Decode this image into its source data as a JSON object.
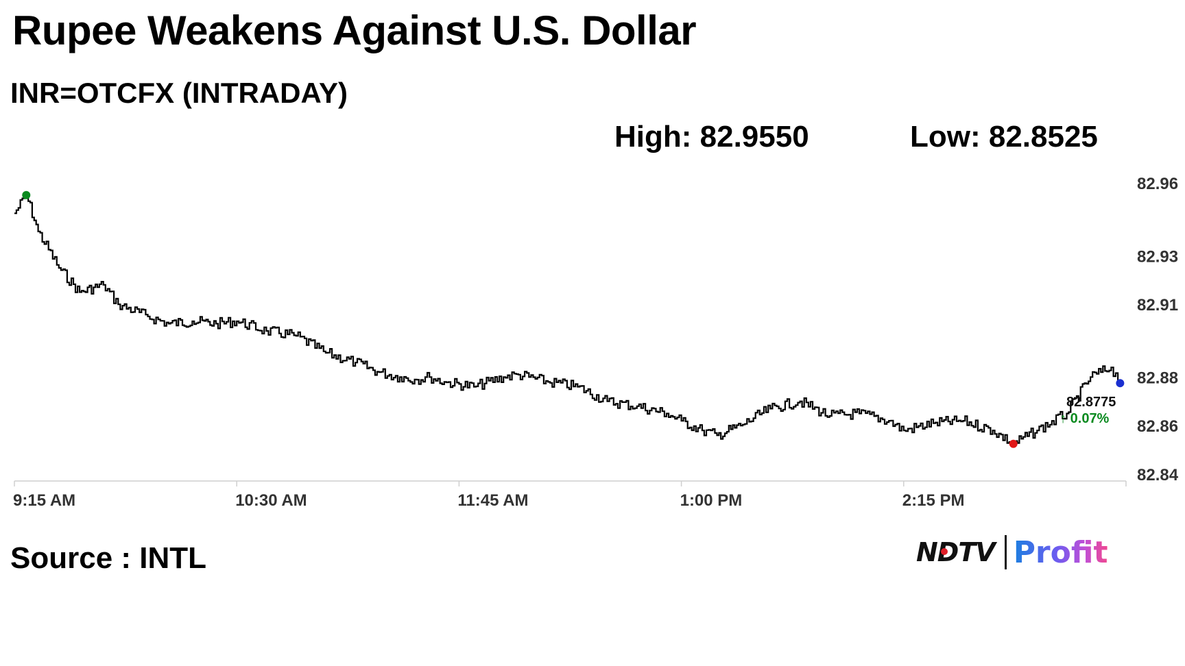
{
  "header": {
    "title": "Rupee Weakens Against U.S. Dollar",
    "subtitle": "INR=OTCFX (INTRADAY)",
    "high_text": "High: 82.9550",
    "low_text": "Low: 82.8525"
  },
  "footer": {
    "source_text": "Source : INTL",
    "logo_left": "NDTV",
    "logo_right": "Profit"
  },
  "chart_data": {
    "type": "line",
    "title": "",
    "xlabel": "",
    "ylabel": "",
    "x_ticks": [
      "9:15 AM",
      "10:30 AM",
      "11:45 AM",
      "1:00 PM",
      "2:15 PM"
    ],
    "y_ticks": [
      "82.96",
      "82.93",
      "82.91",
      "82.88",
      "82.86",
      "82.84"
    ],
    "y_tick_values": [
      82.96,
      82.93,
      82.91,
      82.88,
      82.86,
      82.84
    ],
    "ylim": [
      82.84,
      82.96
    ],
    "xlim": [
      "9:15 AM",
      "3:30 PM"
    ],
    "grid": false,
    "legend": "none",
    "series": [
      {
        "color": "#000000",
        "x": [
          "9:15 AM",
          "9:19 AM",
          "9:23 AM",
          "9:30 AM",
          "9:37 AM",
          "9:45 AM",
          "9:50 AM",
          "10:00 AM",
          "10:07 AM",
          "10:15 AM",
          "10:23 AM",
          "10:30 AM",
          "10:40 AM",
          "10:50 AM",
          "11:00 AM",
          "11:10 AM",
          "11:18 AM",
          "11:25 AM",
          "11:30 AM",
          "11:35 AM",
          "11:40 AM",
          "11:50 AM",
          "12:00 PM",
          "12:05 PM",
          "12:15 PM",
          "12:25 PM",
          "12:35 PM",
          "12:45 PM",
          "12:55 PM",
          "1:00 PM",
          "1:07 PM",
          "1:12 PM",
          "1:20 PM",
          "1:30 PM",
          "1:40 PM",
          "1:50 PM",
          "2:00 PM",
          "2:10 PM",
          "2:15 PM",
          "2:25 PM",
          "2:35 PM",
          "2:45 PM",
          "2:52 PM",
          "3:00 PM",
          "3:10 PM",
          "3:18 PM",
          "3:25 PM",
          "3:28 PM"
        ],
        "values": [
          82.9475,
          82.955,
          82.94,
          82.925,
          82.915,
          82.918,
          82.91,
          82.905,
          82.902,
          82.903,
          82.902,
          82.903,
          82.899,
          82.897,
          82.89,
          82.886,
          82.882,
          82.88,
          82.879,
          82.88,
          82.878,
          82.876,
          82.88,
          82.881,
          82.878,
          82.876,
          82.87,
          82.868,
          82.865,
          82.862,
          82.858,
          82.856,
          82.86,
          82.867,
          82.87,
          82.864,
          82.865,
          82.862,
          82.858,
          82.861,
          82.862,
          82.858,
          82.8525,
          82.858,
          82.865,
          82.88,
          82.884,
          82.8775
        ]
      }
    ],
    "markers": [
      {
        "label": "high",
        "x": "9:19 AM",
        "value": 82.955,
        "color": "#0a8a1f"
      },
      {
        "label": "low",
        "x": "2:52 PM",
        "value": 82.8525,
        "color": "#e01818"
      },
      {
        "label": "last",
        "x": "3:28 PM",
        "value": 82.8775,
        "color": "#1a2fd0"
      }
    ],
    "last_value_label": "82.8775",
    "change_label": "↑ 0.07%",
    "change_color": "#0a8a1f"
  }
}
